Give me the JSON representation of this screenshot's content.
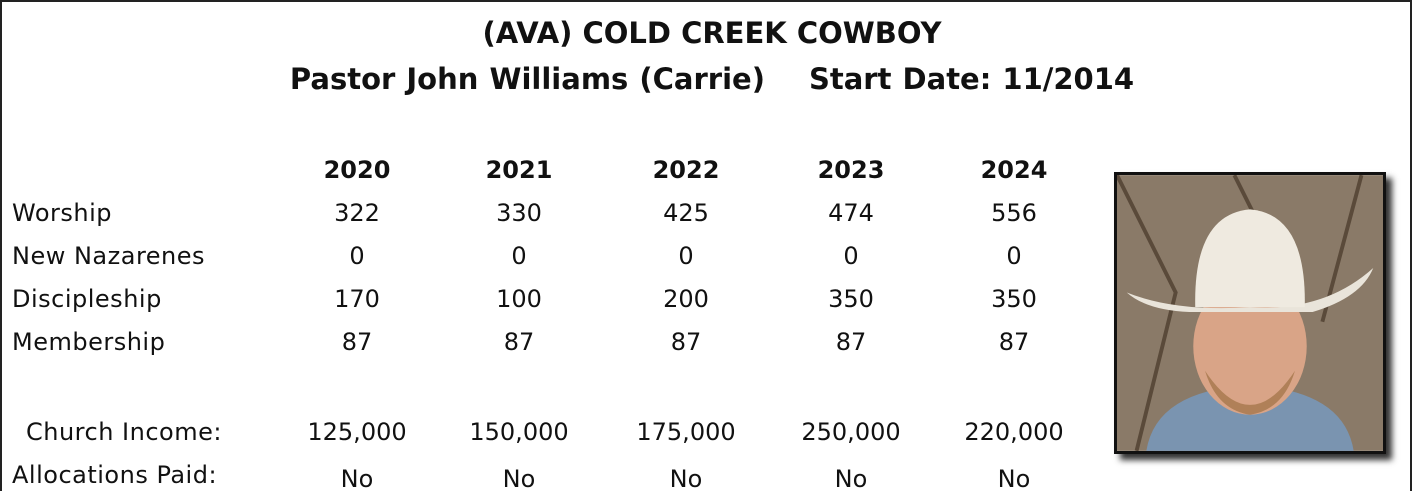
{
  "header": {
    "title": "(AVA) COLD CREEK COWBOY",
    "pastor": "Pastor John Williams (Carrie)",
    "start_date": "Start Date: 11/2014"
  },
  "table": {
    "columns": [
      "2020",
      "2021",
      "2022",
      "2023",
      "2024"
    ],
    "rows": [
      {
        "label": "Worship",
        "values": [
          "322",
          "330",
          "425",
          "474",
          "556"
        ]
      },
      {
        "label": "New Nazarenes",
        "values": [
          "0",
          "0",
          "0",
          "0",
          "0"
        ]
      },
      {
        "label": "Discipleship",
        "values": [
          "170",
          "100",
          "200",
          "350",
          "350"
        ]
      },
      {
        "label": "Membership",
        "values": [
          "87",
          "87",
          "87",
          "87",
          "87"
        ]
      },
      {
        "label": "Church Income:",
        "values": [
          "125,000",
          "150,000",
          "175,000",
          "250,000",
          "220,000"
        ]
      },
      {
        "label": "Allocations Paid:",
        "values": [
          "No",
          "No",
          "No",
          "No",
          "No"
        ]
      }
    ]
  }
}
